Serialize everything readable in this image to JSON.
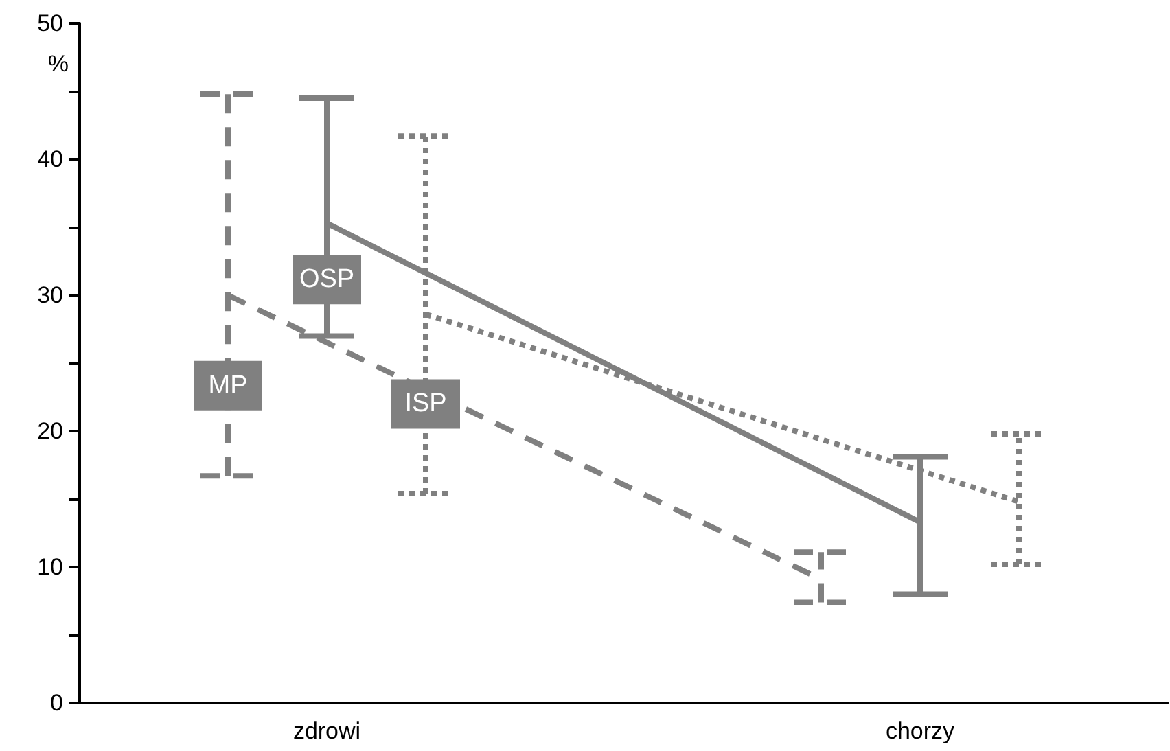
{
  "chart_data": {
    "type": "line",
    "ylabel": "%",
    "categories": [
      null,
      null,
      "zdrowi",
      null,
      null,
      null,
      null,
      null,
      "chorzy",
      null,
      null
    ],
    "ylim": [
      0,
      50
    ],
    "yticks": [
      0,
      {
        "value": 5,
        "label": null
      },
      10,
      {
        "value": 15,
        "label": null
      },
      20,
      {
        "value": 25,
        "label": null
      },
      30,
      {
        "value": 35,
        "label": null
      },
      40,
      {
        "value": 45,
        "label": null
      },
      50
    ],
    "grid": false,
    "legend": false,
    "marker": "none",
    "series": [
      {
        "name": "MP",
        "color": "#808080",
        "line_style": "dashed",
        "values": [
          null,
          30.0,
          null,
          null,
          null,
          null,
          null,
          9.1,
          null,
          null,
          null
        ],
        "errors": [
          null,
          [
            16.7,
            44.8
          ],
          null,
          null,
          null,
          null,
          null,
          [
            7.4,
            11.1
          ],
          null,
          null,
          null
        ]
      },
      {
        "name": "OSP",
        "color": "#808080",
        "line_style": "solid",
        "values": [
          null,
          null,
          35.3,
          null,
          null,
          null,
          null,
          null,
          13.3,
          null,
          null
        ],
        "errors": [
          null,
          null,
          [
            27.0,
            44.5
          ],
          null,
          null,
          null,
          null,
          null,
          [
            8.0,
            18.1
          ],
          null,
          null
        ]
      },
      {
        "name": "ISP",
        "color": "#808080",
        "line_style": "dotted",
        "values": [
          null,
          null,
          null,
          28.6,
          null,
          null,
          null,
          null,
          null,
          14.8,
          null
        ],
        "errors": [
          null,
          null,
          null,
          [
            15.4,
            41.7
          ],
          null,
          null,
          null,
          null,
          null,
          [
            10.2,
            19.8
          ],
          null
        ]
      }
    ]
  }
}
